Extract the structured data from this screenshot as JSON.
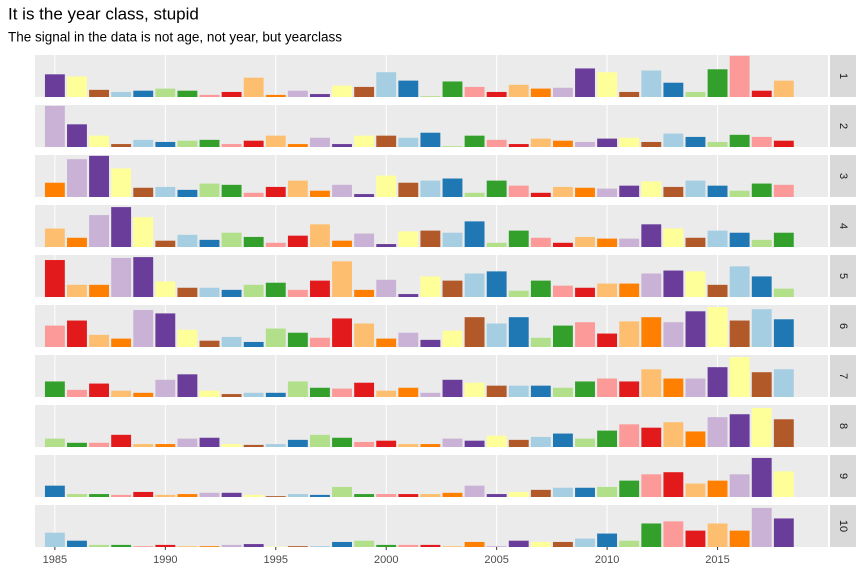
{
  "title": "It is the year class, stupid",
  "subtitle": "The signal in the data is not age, not year, but yearclass",
  "chart_data": [
    {
      "type": "bar",
      "strip": "1",
      "x": [
        1985,
        1986,
        1987,
        1988,
        1989,
        1990,
        1991,
        1992,
        1993,
        1994,
        1995,
        1996,
        1997,
        1998,
        1999,
        2000,
        2001,
        2002,
        2003,
        2004,
        2005,
        2006,
        2007,
        2008,
        2009,
        2010,
        2011,
        2012,
        2013,
        2014,
        2015,
        2016,
        2017,
        2018
      ],
      "values": [
        54,
        49,
        17,
        12,
        15,
        20,
        15,
        5,
        12,
        46,
        5,
        15,
        7,
        27,
        24,
        59,
        39,
        2,
        37,
        24,
        12,
        29,
        20,
        22,
        68,
        59,
        12,
        63,
        34,
        12,
        66,
        98,
        15,
        39
      ],
      "colors": [
        "#6a3d9a",
        "#ffff99",
        "#b15928",
        "#a6cee3",
        "#1f78b4",
        "#b2df8a",
        "#33a02c",
        "#fb9a99",
        "#e31a1c",
        "#fdbf6f",
        "#ff7f00",
        "#cab2d6",
        "#6a3d9a",
        "#ffff99",
        "#b15928",
        "#a6cee3",
        "#1f78b4",
        "#b2df8a",
        "#33a02c",
        "#fb9a99",
        "#e31a1c",
        "#fdbf6f",
        "#ff7f00",
        "#cab2d6",
        "#6a3d9a",
        "#ffff99",
        "#b15928",
        "#a6cee3",
        "#1f78b4",
        "#b2df8a",
        "#33a02c",
        "#fb9a99",
        "#e31a1c",
        "#fdbf6f"
      ],
      "xlim": [
        1984.1,
        2020
      ],
      "xticks": [
        1985,
        1990,
        1995,
        2000,
        2005,
        2010,
        2015
      ],
      "ylim": [
        0,
        100
      ],
      "grid": true
    },
    {
      "type": "bar",
      "strip": "2",
      "x": [
        1985,
        1986,
        1987,
        1988,
        1989,
        1990,
        1991,
        1992,
        1993,
        1994,
        1995,
        1996,
        1997,
        1998,
        1999,
        2000,
        2001,
        2002,
        2003,
        2004,
        2005,
        2006,
        2007,
        2008,
        2009,
        2010,
        2011,
        2012,
        2013,
        2014,
        2015,
        2016,
        2017,
        2018
      ],
      "values": [
        98,
        54,
        27,
        7,
        17,
        12,
        15,
        17,
        7,
        15,
        27,
        7,
        22,
        7,
        27,
        27,
        22,
        34,
        2,
        27,
        17,
        7,
        20,
        15,
        12,
        20,
        22,
        12,
        32,
        24,
        12,
        29,
        24,
        15
      ],
      "colors": [
        "#cab2d6",
        "#6a3d9a",
        "#ffff99",
        "#b15928",
        "#a6cee3",
        "#1f78b4",
        "#b2df8a",
        "#33a02c",
        "#fb9a99",
        "#e31a1c",
        "#fdbf6f",
        "#ff7f00",
        "#cab2d6",
        "#6a3d9a",
        "#ffff99",
        "#b15928",
        "#a6cee3",
        "#1f78b4",
        "#b2df8a",
        "#33a02c",
        "#fb9a99",
        "#e31a1c",
        "#fdbf6f",
        "#ff7f00",
        "#cab2d6",
        "#6a3d9a",
        "#ffff99",
        "#b15928",
        "#a6cee3",
        "#1f78b4",
        "#b2df8a",
        "#33a02c",
        "#fb9a99",
        "#e31a1c"
      ],
      "xlim": [
        1984.1,
        2020
      ],
      "xticks": [
        1985,
        1990,
        1995,
        2000,
        2005,
        2010,
        2015
      ],
      "ylim": [
        0,
        100
      ],
      "grid": true
    },
    {
      "type": "bar",
      "strip": "3",
      "x": [
        1985,
        1986,
        1987,
        1988,
        1989,
        1990,
        1991,
        1992,
        1993,
        1994,
        1995,
        1996,
        1997,
        1998,
        1999,
        2000,
        2001,
        2002,
        2003,
        2004,
        2005,
        2006,
        2007,
        2008,
        2009,
        2010,
        2011,
        2012,
        2013,
        2014,
        2015,
        2016,
        2017,
        2018
      ],
      "values": [
        34,
        90,
        98,
        68,
        22,
        24,
        17,
        32,
        29,
        10,
        24,
        39,
        15,
        29,
        7,
        51,
        34,
        39,
        44,
        10,
        39,
        27,
        10,
        24,
        22,
        20,
        27,
        37,
        24,
        39,
        27,
        15,
        32,
        29
      ],
      "colors": [
        "#ff7f00",
        "#cab2d6",
        "#6a3d9a",
        "#ffff99",
        "#b15928",
        "#a6cee3",
        "#1f78b4",
        "#b2df8a",
        "#33a02c",
        "#fb9a99",
        "#e31a1c",
        "#fdbf6f",
        "#ff7f00",
        "#cab2d6",
        "#6a3d9a",
        "#ffff99",
        "#b15928",
        "#a6cee3",
        "#1f78b4",
        "#b2df8a",
        "#33a02c",
        "#fb9a99",
        "#e31a1c",
        "#fdbf6f",
        "#ff7f00",
        "#cab2d6",
        "#6a3d9a",
        "#ffff99",
        "#b15928",
        "#a6cee3",
        "#1f78b4",
        "#b2df8a",
        "#33a02c",
        "#fb9a99"
      ],
      "xlim": [
        1984.1,
        2020
      ],
      "xticks": [
        1985,
        1990,
        1995,
        2000,
        2005,
        2010,
        2015
      ],
      "ylim": [
        0,
        100
      ],
      "grid": true
    },
    {
      "type": "bar",
      "strip": "4",
      "x": [
        1985,
        1986,
        1987,
        1988,
        1989,
        1990,
        1991,
        1992,
        1993,
        1994,
        1995,
        1996,
        1997,
        1998,
        1999,
        2000,
        2001,
        2002,
        2003,
        2004,
        2005,
        2006,
        2007,
        2008,
        2009,
        2010,
        2011,
        2012,
        2013,
        2014,
        2015,
        2016,
        2017,
        2018
      ],
      "values": [
        44,
        22,
        76,
        95,
        71,
        15,
        29,
        17,
        34,
        24,
        10,
        27,
        54,
        15,
        32,
        7,
        37,
        39,
        34,
        61,
        10,
        39,
        22,
        10,
        24,
        20,
        20,
        54,
        44,
        22,
        39,
        34,
        17,
        34
      ],
      "colors": [
        "#fdbf6f",
        "#ff7f00",
        "#cab2d6",
        "#6a3d9a",
        "#ffff99",
        "#b15928",
        "#a6cee3",
        "#1f78b4",
        "#b2df8a",
        "#33a02c",
        "#fb9a99",
        "#e31a1c",
        "#fdbf6f",
        "#ff7f00",
        "#cab2d6",
        "#6a3d9a",
        "#ffff99",
        "#b15928",
        "#a6cee3",
        "#1f78b4",
        "#b2df8a",
        "#33a02c",
        "#fb9a99",
        "#e31a1c",
        "#fdbf6f",
        "#ff7f00",
        "#cab2d6",
        "#6a3d9a",
        "#ffff99",
        "#b15928",
        "#a6cee3",
        "#1f78b4",
        "#b2df8a",
        "#33a02c"
      ],
      "xlim": [
        1984.1,
        2020
      ],
      "xticks": [
        1985,
        1990,
        1995,
        2000,
        2005,
        2010,
        2015
      ],
      "ylim": [
        0,
        100
      ],
      "grid": true
    },
    {
      "type": "bar",
      "strip": "5",
      "x": [
        1985,
        1986,
        1987,
        1988,
        1989,
        1990,
        1991,
        1992,
        1993,
        1994,
        1995,
        1996,
        1997,
        1998,
        1999,
        2000,
        2001,
        2002,
        2003,
        2004,
        2005,
        2006,
        2007,
        2008,
        2009,
        2010,
        2011,
        2012,
        2013,
        2014,
        2015,
        2016,
        2017,
        2018
      ],
      "values": [
        88,
        29,
        29,
        93,
        95,
        37,
        22,
        22,
        17,
        29,
        34,
        17,
        39,
        85,
        17,
        41,
        7,
        49,
        39,
        56,
        61,
        15,
        39,
        27,
        22,
        32,
        32,
        56,
        63,
        61,
        29,
        73,
        49,
        20
      ],
      "colors": [
        "#e31a1c",
        "#fdbf6f",
        "#ff7f00",
        "#cab2d6",
        "#6a3d9a",
        "#ffff99",
        "#b15928",
        "#a6cee3",
        "#1f78b4",
        "#b2df8a",
        "#33a02c",
        "#fb9a99",
        "#e31a1c",
        "#fdbf6f",
        "#ff7f00",
        "#cab2d6",
        "#6a3d9a",
        "#ffff99",
        "#b15928",
        "#a6cee3",
        "#1f78b4",
        "#b2df8a",
        "#33a02c",
        "#fb9a99",
        "#e31a1c",
        "#fdbf6f",
        "#ff7f00",
        "#cab2d6",
        "#6a3d9a",
        "#ffff99",
        "#b15928",
        "#a6cee3",
        "#1f78b4",
        "#b2df8a"
      ],
      "xlim": [
        1984.1,
        2020
      ],
      "xticks": [
        1985,
        1990,
        1995,
        2000,
        2005,
        2010,
        2015
      ],
      "ylim": [
        0,
        100
      ],
      "grid": true
    },
    {
      "type": "bar",
      "strip": "6",
      "x": [
        1985,
        1986,
        1987,
        1988,
        1989,
        1990,
        1991,
        1992,
        1993,
        1994,
        1995,
        1996,
        1997,
        1998,
        1999,
        2000,
        2001,
        2002,
        2003,
        2004,
        2005,
        2006,
        2007,
        2008,
        2009,
        2010,
        2011,
        2012,
        2013,
        2014,
        2015,
        2016,
        2017,
        2018
      ],
      "values": [
        51,
        63,
        29,
        20,
        88,
        80,
        41,
        15,
        24,
        12,
        44,
        34,
        22,
        68,
        56,
        20,
        34,
        17,
        39,
        71,
        56,
        71,
        22,
        51,
        59,
        32,
        61,
        71,
        59,
        85,
        95,
        63,
        90,
        66
      ],
      "colors": [
        "#fb9a99",
        "#e31a1c",
        "#fdbf6f",
        "#ff7f00",
        "#cab2d6",
        "#6a3d9a",
        "#ffff99",
        "#b15928",
        "#a6cee3",
        "#1f78b4",
        "#b2df8a",
        "#33a02c",
        "#fb9a99",
        "#e31a1c",
        "#fdbf6f",
        "#ff7f00",
        "#cab2d6",
        "#6a3d9a",
        "#ffff99",
        "#b15928",
        "#a6cee3",
        "#1f78b4",
        "#b2df8a",
        "#33a02c",
        "#fb9a99",
        "#e31a1c",
        "#fdbf6f",
        "#ff7f00",
        "#cab2d6",
        "#6a3d9a",
        "#ffff99",
        "#b15928",
        "#a6cee3",
        "#1f78b4"
      ],
      "xlim": [
        1984.1,
        2020
      ],
      "xticks": [
        1985,
        1990,
        1995,
        2000,
        2005,
        2010,
        2015
      ],
      "ylim": [
        0,
        100
      ],
      "grid": true
    },
    {
      "type": "bar",
      "strip": "7",
      "x": [
        1985,
        1986,
        1987,
        1988,
        1989,
        1990,
        1991,
        1992,
        1993,
        1994,
        1995,
        1996,
        1997,
        1998,
        1999,
        2000,
        2001,
        2002,
        2003,
        2004,
        2005,
        2006,
        2007,
        2008,
        2009,
        2010,
        2011,
        2012,
        2013,
        2014,
        2015,
        2016,
        2017,
        2018
      ],
      "values": [
        37,
        17,
        32,
        15,
        10,
        41,
        54,
        15,
        7,
        10,
        10,
        37,
        22,
        20,
        34,
        15,
        22,
        10,
        41,
        34,
        27,
        27,
        27,
        22,
        37,
        44,
        37,
        66,
        44,
        44,
        71,
        95,
        59,
        66
      ],
      "colors": [
        "#33a02c",
        "#fb9a99",
        "#e31a1c",
        "#fdbf6f",
        "#ff7f00",
        "#cab2d6",
        "#6a3d9a",
        "#ffff99",
        "#b15928",
        "#a6cee3",
        "#1f78b4",
        "#b2df8a",
        "#33a02c",
        "#fb9a99",
        "#e31a1c",
        "#fdbf6f",
        "#ff7f00",
        "#cab2d6",
        "#6a3d9a",
        "#ffff99",
        "#b15928",
        "#a6cee3",
        "#1f78b4",
        "#b2df8a",
        "#33a02c",
        "#fb9a99",
        "#e31a1c",
        "#fdbf6f",
        "#ff7f00",
        "#cab2d6",
        "#6a3d9a",
        "#ffff99",
        "#b15928",
        "#a6cee3"
      ],
      "xlim": [
        1984.1,
        2020
      ],
      "xticks": [
        1985,
        1990,
        1995,
        2000,
        2005,
        2010,
        2015
      ],
      "ylim": [
        0,
        100
      ],
      "grid": true
    },
    {
      "type": "bar",
      "strip": "8",
      "x": [
        1985,
        1986,
        1987,
        1988,
        1989,
        1990,
        1991,
        1992,
        1993,
        1994,
        1995,
        1996,
        1997,
        1998,
        1999,
        2000,
        2001,
        2002,
        2003,
        2004,
        2005,
        2006,
        2007,
        2008,
        2009,
        2010,
        2011,
        2012,
        2013,
        2014,
        2015,
        2016,
        2017,
        2018
      ],
      "values": [
        20,
        10,
        10,
        29,
        7,
        7,
        20,
        22,
        7,
        5,
        7,
        17,
        29,
        22,
        12,
        15,
        7,
        7,
        20,
        15,
        27,
        17,
        24,
        32,
        20,
        39,
        54,
        46,
        59,
        37,
        71,
        78,
        93,
        66
      ],
      "colors": [
        "#b2df8a",
        "#33a02c",
        "#fb9a99",
        "#e31a1c",
        "#fdbf6f",
        "#ff7f00",
        "#cab2d6",
        "#6a3d9a",
        "#ffff99",
        "#b15928",
        "#a6cee3",
        "#1f78b4",
        "#b2df8a",
        "#33a02c",
        "#fb9a99",
        "#e31a1c",
        "#fdbf6f",
        "#ff7f00",
        "#cab2d6",
        "#6a3d9a",
        "#ffff99",
        "#b15928",
        "#a6cee3",
        "#1f78b4",
        "#b2df8a",
        "#33a02c",
        "#fb9a99",
        "#e31a1c",
        "#fdbf6f",
        "#ff7f00",
        "#cab2d6",
        "#6a3d9a",
        "#ffff99",
        "#b15928"
      ],
      "xlim": [
        1984.1,
        2020
      ],
      "xticks": [
        1985,
        1990,
        1995,
        2000,
        2005,
        2010,
        2015
      ],
      "ylim": [
        0,
        100
      ],
      "grid": true
    },
    {
      "type": "bar",
      "strip": "9",
      "x": [
        1985,
        1986,
        1987,
        1988,
        1989,
        1990,
        1991,
        1992,
        1993,
        1994,
        1995,
        1996,
        1997,
        1998,
        1999,
        2000,
        2001,
        2002,
        2003,
        2004,
        2005,
        2006,
        2007,
        2008,
        2009,
        2010,
        2011,
        2012,
        2013,
        2014,
        2015,
        2016,
        2017,
        2018
      ],
      "values": [
        27,
        7,
        7,
        5,
        12,
        5,
        7,
        10,
        10,
        5,
        2,
        7,
        5,
        24,
        7,
        7,
        7,
        7,
        10,
        27,
        7,
        12,
        17,
        22,
        22,
        24,
        39,
        54,
        59,
        32,
        39,
        54,
        93,
        61
      ],
      "colors": [
        "#1f78b4",
        "#b2df8a",
        "#33a02c",
        "#fb9a99",
        "#e31a1c",
        "#fdbf6f",
        "#ff7f00",
        "#cab2d6",
        "#6a3d9a",
        "#ffff99",
        "#b15928",
        "#a6cee3",
        "#1f78b4",
        "#b2df8a",
        "#33a02c",
        "#fb9a99",
        "#e31a1c",
        "#fdbf6f",
        "#ff7f00",
        "#cab2d6",
        "#6a3d9a",
        "#ffff99",
        "#b15928",
        "#a6cee3",
        "#1f78b4",
        "#b2df8a",
        "#33a02c",
        "#fb9a99",
        "#e31a1c",
        "#fdbf6f",
        "#ff7f00",
        "#cab2d6",
        "#6a3d9a",
        "#ffff99"
      ],
      "xlim": [
        1984.1,
        2020
      ],
      "xticks": [
        1985,
        1990,
        1995,
        2000,
        2005,
        2010,
        2015
      ],
      "ylim": [
        0,
        100
      ],
      "grid": true
    },
    {
      "type": "bar",
      "strip": "10",
      "x": [
        1985,
        1986,
        1987,
        1988,
        1989,
        1990,
        1991,
        1992,
        1993,
        1994,
        1995,
        1996,
        1997,
        1998,
        1999,
        2000,
        2001,
        2002,
        2003,
        2004,
        2005,
        2006,
        2007,
        2008,
        2009,
        2010,
        2011,
        2012,
        2013,
        2014,
        2015,
        2016,
        2017,
        2018
      ],
      "values": [
        34,
        15,
        5,
        5,
        2,
        5,
        2,
        2,
        5,
        7,
        1,
        2,
        2,
        12,
        15,
        5,
        5,
        5,
        2,
        12,
        2,
        15,
        12,
        12,
        20,
        32,
        15,
        56,
        61,
        39,
        56,
        39,
        93,
        68
      ],
      "colors": [
        "#a6cee3",
        "#1f78b4",
        "#b2df8a",
        "#33a02c",
        "#fb9a99",
        "#e31a1c",
        "#fdbf6f",
        "#ff7f00",
        "#cab2d6",
        "#6a3d9a",
        "#ffff99",
        "#b15928",
        "#a6cee3",
        "#1f78b4",
        "#b2df8a",
        "#33a02c",
        "#fb9a99",
        "#e31a1c",
        "#fdbf6f",
        "#ff7f00",
        "#cab2d6",
        "#6a3d9a",
        "#ffff99",
        "#b15928",
        "#a6cee3",
        "#1f78b4",
        "#b2df8a",
        "#33a02c",
        "#fb9a99",
        "#e31a1c",
        "#fdbf6f",
        "#ff7f00",
        "#cab2d6",
        "#6a3d9a"
      ],
      "xlim": [
        1984.1,
        2020
      ],
      "xticks": [
        1985,
        1990,
        1995,
        2000,
        2005,
        2010,
        2015
      ],
      "ylim": [
        0,
        100
      ],
      "grid": true
    }
  ]
}
